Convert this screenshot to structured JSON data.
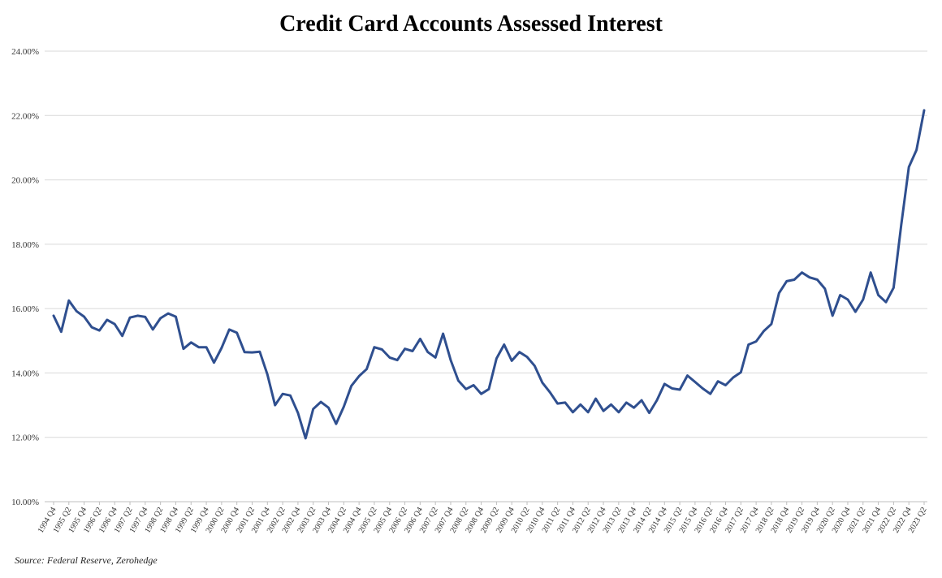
{
  "colors": {
    "line": "#2f4f8f",
    "grid": "#d9d9d9",
    "axis": "#bfbfbf"
  },
  "source": "Source: Federal Reserve, Zerohedge",
  "chart_data": {
    "type": "line",
    "title": "Credit Card Accounts Assessed Interest",
    "xlabel": "",
    "ylabel": "",
    "ylim": [
      10,
      24
    ],
    "yticks": [
      "10.00%",
      "12.00%",
      "14.00%",
      "16.00%",
      "18.00%",
      "20.00%",
      "22.00%",
      "24.00%"
    ],
    "grid": true,
    "legend": "none",
    "x": [
      "1994 Q4",
      "1995 Q1",
      "1995 Q2",
      "1995 Q3",
      "1995 Q4",
      "1996 Q1",
      "1996 Q2",
      "1996 Q3",
      "1996 Q4",
      "1997 Q1",
      "1997 Q2",
      "1997 Q3",
      "1997 Q4",
      "1998 Q1",
      "1998 Q2",
      "1998 Q3",
      "1998 Q4",
      "1999 Q1",
      "1999 Q2",
      "1999 Q3",
      "1999 Q4",
      "2000 Q1",
      "2000 Q2",
      "2000 Q3",
      "2000 Q4",
      "2001 Q1",
      "2001 Q2",
      "2001 Q3",
      "2001 Q4",
      "2002 Q1",
      "2002 Q2",
      "2002 Q3",
      "2002 Q4",
      "2003 Q1",
      "2003 Q2",
      "2003 Q3",
      "2003 Q4",
      "2004 Q1",
      "2004 Q2",
      "2004 Q3",
      "2004 Q4",
      "2005 Q1",
      "2005 Q2",
      "2005 Q3",
      "2005 Q4",
      "2006 Q1",
      "2006 Q2",
      "2006 Q3",
      "2006 Q4",
      "2007 Q1",
      "2007 Q2",
      "2007 Q3",
      "2007 Q4",
      "2008 Q1",
      "2008 Q2",
      "2008 Q3",
      "2008 Q4",
      "2009 Q1",
      "2009 Q2",
      "2009 Q3",
      "2009 Q4",
      "2010 Q1",
      "2010 Q2",
      "2010 Q3",
      "2010 Q4",
      "2011 Q1",
      "2011 Q2",
      "2011 Q3",
      "2011 Q4",
      "2012 Q1",
      "2012 Q2",
      "2012 Q3",
      "2012 Q4",
      "2013 Q1",
      "2013 Q2",
      "2013 Q3",
      "2013 Q4",
      "2014 Q1",
      "2014 Q2",
      "2014 Q3",
      "2014 Q4",
      "2015 Q1",
      "2015 Q2",
      "2015 Q3",
      "2015 Q4",
      "2016 Q1",
      "2016 Q2",
      "2016 Q3",
      "2016 Q4",
      "2017 Q1",
      "2017 Q2",
      "2017 Q3",
      "2017 Q4",
      "2018 Q1",
      "2018 Q2",
      "2018 Q3",
      "2018 Q4",
      "2019 Q1",
      "2019 Q2",
      "2019 Q3",
      "2019 Q4",
      "2020 Q1",
      "2020 Q2",
      "2020 Q3",
      "2020 Q4",
      "2021 Q1",
      "2021 Q2",
      "2021 Q3",
      "2021 Q4",
      "2022 Q1",
      "2022 Q2",
      "2022 Q3",
      "2022 Q4",
      "2023 Q1",
      "2023 Q2"
    ],
    "x_tick_labels": [
      "1994 Q4",
      "1995 Q2",
      "1995 Q4",
      "1996 Q2",
      "1996 Q4",
      "1997 Q2",
      "1997 Q4",
      "1998 Q2",
      "1998 Q4",
      "1999 Q2",
      "1999 Q4",
      "2000 Q2",
      "2000 Q4",
      "2001 Q2",
      "2001 Q4",
      "2002 Q2",
      "2002 Q4",
      "2003 Q2",
      "2003 Q4",
      "2004 Q2",
      "2004 Q4",
      "2005 Q2",
      "2005 Q4",
      "2006 Q2",
      "2006 Q4",
      "2007 Q2",
      "2007 Q4",
      "2008 Q2",
      "2008 Q4",
      "2009 Q2",
      "2009 Q4",
      "2010 Q2",
      "2010 Q4",
      "2011 Q2",
      "2011 Q4",
      "2012 Q2",
      "2012 Q4",
      "2013 Q2",
      "2013 Q4",
      "2014 Q2",
      "2014 Q4",
      "2015 Q2",
      "2015 Q4",
      "2016 Q2",
      "2016 Q4",
      "2017 Q2",
      "2017 Q4",
      "2018 Q2",
      "2018 Q4",
      "2019 Q2",
      "2019 Q4",
      "2020 Q2",
      "2020 Q4",
      "2021 Q2",
      "2021 Q4",
      "2022 Q2",
      "2022 Q4",
      "2023 Q2"
    ],
    "series": [
      {
        "values": [
          15.78,
          15.28,
          16.25,
          15.92,
          15.75,
          15.42,
          15.32,
          15.65,
          15.52,
          15.15,
          15.72,
          15.78,
          15.74,
          15.35,
          15.7,
          15.85,
          15.75,
          14.75,
          14.95,
          14.8,
          14.8,
          14.32,
          14.78,
          15.35,
          15.25,
          14.65,
          14.64,
          14.66,
          13.95,
          13.0,
          13.35,
          13.3,
          12.76,
          11.97,
          12.88,
          13.1,
          12.92,
          12.42,
          12.95,
          13.6,
          13.9,
          14.12,
          14.8,
          14.73,
          14.48,
          14.4,
          14.75,
          14.68,
          15.06,
          14.65,
          14.48,
          15.22,
          14.4,
          13.76,
          13.5,
          13.62,
          13.35,
          13.5,
          14.45,
          14.88,
          14.38,
          14.65,
          14.5,
          14.22,
          13.7,
          13.4,
          13.05,
          13.08,
          12.78,
          13.02,
          12.78,
          13.2,
          12.82,
          13.02,
          12.78,
          13.08,
          12.92,
          13.15,
          12.76,
          13.15,
          13.66,
          13.52,
          13.48,
          13.92,
          13.72,
          13.52,
          13.35,
          13.74,
          13.62,
          13.86,
          14.02,
          14.88,
          14.98,
          15.3,
          15.52,
          16.48,
          16.85,
          16.9,
          17.12,
          16.97,
          16.9,
          16.62,
          15.78,
          16.42,
          16.28,
          15.9,
          16.28,
          17.12,
          16.42,
          16.2,
          16.65,
          18.6,
          20.4,
          20.93,
          22.16
        ]
      }
    ]
  }
}
